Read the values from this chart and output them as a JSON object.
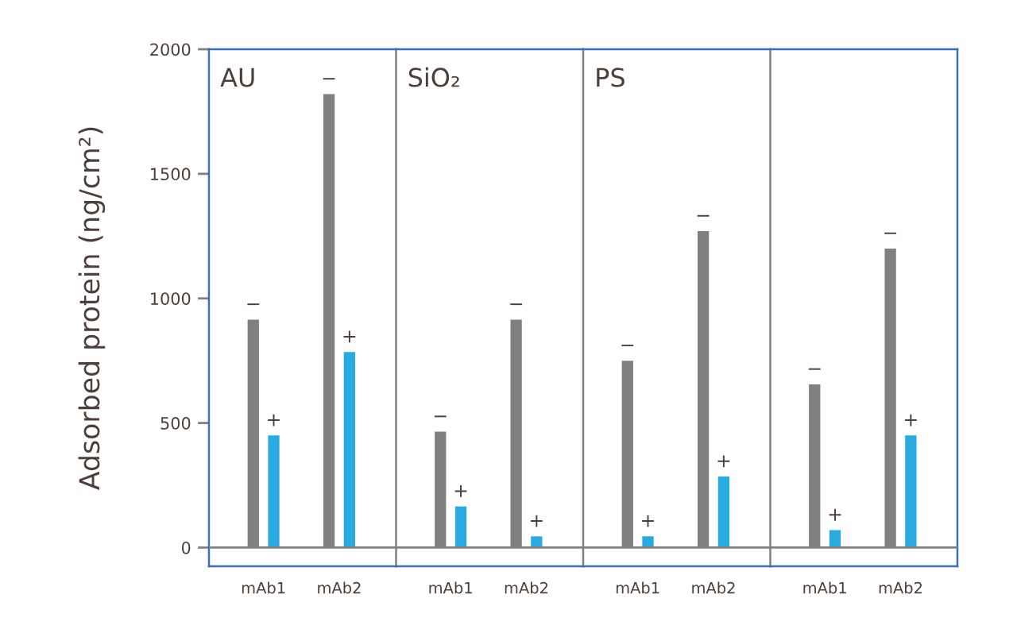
{
  "chart_data": [
    {
      "type": "bar",
      "title": "AU",
      "ylabel": "Adsorbed protein (ng/cm²)",
      "categories": [
        "mAb1",
        "mAb2"
      ],
      "series": [
        {
          "name": "−",
          "color": "#808080",
          "values": [
            915,
            1820
          ]
        },
        {
          "name": "+",
          "color": "#29abe2",
          "values": [
            450,
            785
          ]
        }
      ],
      "ylim": [
        -75,
        2000
      ],
      "yticks": [
        0,
        500,
        1000,
        1500,
        2000
      ],
      "ref_lines": [
        {
          "axis": "y",
          "value": 0,
          "color": "#808080"
        }
      ]
    },
    {
      "type": "bar",
      "title": "SiO₂",
      "categories": [
        "mAb1",
        "mAb2"
      ],
      "series": [
        {
          "name": "−",
          "color": "#808080",
          "values": [
            465,
            915
          ]
        },
        {
          "name": "+",
          "color": "#29abe2",
          "values": [
            165,
            45
          ]
        }
      ],
      "ylim": [
        -75,
        2000
      ],
      "tick_labels": "x",
      "ref_lines": [
        {
          "axis": "y",
          "value": 0,
          "color": "#808080"
        }
      ]
    },
    {
      "type": "bar",
      "title": "PS",
      "categories": [
        "mAb1",
        "mAb2"
      ],
      "series": [
        {
          "name": "−",
          "color": "#808080",
          "values": [
            750,
            1270
          ]
        },
        {
          "name": "+",
          "color": "#29abe2",
          "values": [
            45,
            285
          ]
        }
      ],
      "ylim": [
        -75,
        2000
      ],
      "tick_labels": "x",
      "ref_lines": [
        {
          "axis": "y",
          "value": 0,
          "color": "#808080"
        }
      ]
    },
    {
      "type": "bar",
      "categories": [
        "mAb1",
        "mAb2"
      ],
      "series": [
        {
          "name": "−",
          "color": "#808080",
          "values": [
            655,
            1200
          ]
        },
        {
          "name": "+",
          "color": "#29abe2",
          "values": [
            70,
            450
          ]
        }
      ],
      "ylim": [
        -75,
        2000
      ],
      "tick_labels": "x",
      "ref_lines": [
        {
          "axis": "y",
          "value": 0,
          "color": "#808080"
        }
      ]
    }
  ]
}
